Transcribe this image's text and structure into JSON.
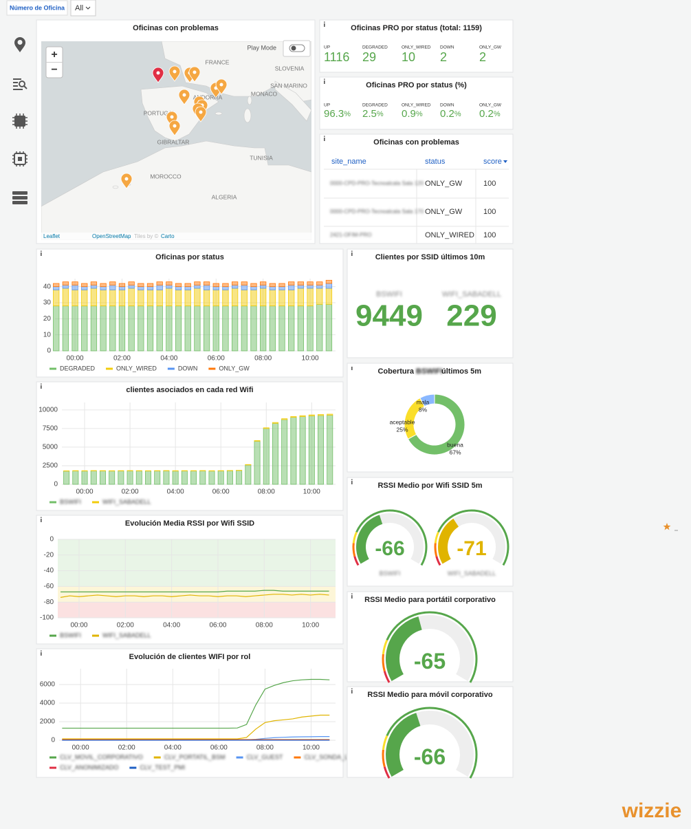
{
  "filter": {
    "label": "Número de Oficina",
    "value": "All"
  },
  "map": {
    "title": "Oficinas con problemas",
    "play_mode": "Play Mode",
    "zoom_in": "+",
    "zoom_out": "−",
    "places": [
      "FRANCE",
      "ANDORRA",
      "SLOVENIA",
      "SAN MARINO",
      "MONACO",
      "PORTUGAL",
      "GIBRALTAR",
      "TUNISIA",
      "MOROCCO",
      "ALGERIA"
    ],
    "attribution": [
      "Leaflet",
      "OpenStreetMap",
      "Tiles by ©",
      "Carto"
    ]
  },
  "status_count": {
    "title": "Oficinas PRO por status (total: 1159)",
    "items": [
      {
        "label": "UP",
        "value": 1116
      },
      {
        "label": "DEGRADED",
        "value": 29
      },
      {
        "label": "ONLY_WIRED",
        "value": 10
      },
      {
        "label": "DOWN",
        "value": 2
      },
      {
        "label": "ONLY_GW",
        "value": 2
      }
    ]
  },
  "status_pct": {
    "title": "Oficinas PRO por status (%)",
    "unit": "%",
    "items": [
      {
        "label": "UP",
        "value": 96.3
      },
      {
        "label": "DEGRADED",
        "value": 2.5
      },
      {
        "label": "ONLY_WIRED",
        "value": 0.9
      },
      {
        "label": "DOWN",
        "value": 0.2
      },
      {
        "label": "ONLY_GW",
        "value": 0.2
      }
    ]
  },
  "problem_table": {
    "title": "Oficinas con problemas",
    "columns": [
      "site_name",
      "status",
      "score"
    ],
    "rows": [
      [
        "0000-CPD-PRO-Tecnoalcala Sala 120",
        "ONLY_GW",
        100
      ],
      [
        "0000-CPD-PRO-Tecnoalcala Sala 170",
        "ONLY_GW",
        100
      ],
      [
        "2421-OFIM-PRO",
        "ONLY_WIRED",
        100
      ]
    ]
  },
  "ssid_clients": {
    "title": "Clientes por SSID últimos 10m",
    "items": [
      {
        "name": "BSWIFI",
        "value": 9449
      },
      {
        "name": "WIFI_SABADELL",
        "value": 229
      }
    ]
  },
  "logo": "wizzie",
  "chart_data": [
    {
      "type": "bar",
      "title": "Oficinas por status",
      "x": [
        -0.8,
        -0.4,
        0,
        0.4,
        0.8,
        1.2,
        1.6,
        2,
        2.4,
        2.8,
        3.2,
        3.6,
        4,
        4.4,
        4.8,
        5.2,
        5.6,
        6,
        6.4,
        6.8,
        7.2,
        7.6,
        8,
        8.4,
        8.8,
        9.2,
        9.6,
        10,
        10.4,
        10.8
      ],
      "xlim": [
        -0.85,
        11.08
      ],
      "xticks": [
        {
          "value": 0,
          "label": "00:00"
        },
        {
          "value": 2,
          "label": "02:00"
        },
        {
          "value": 4,
          "label": "04:00"
        },
        {
          "value": 6,
          "label": "06:00"
        },
        {
          "value": 8,
          "label": "08:00"
        },
        {
          "value": 10,
          "label": "10:00"
        }
      ],
      "ylim": [
        0,
        45
      ],
      "yticks": [
        0,
        10,
        20,
        30,
        40
      ],
      "grid": true,
      "series": [
        {
          "name": "DEGRADED",
          "color": "#73bf69",
          "values": [
            28,
            28,
            28,
            28,
            28,
            28,
            28,
            28,
            28,
            28,
            28,
            28,
            28,
            28,
            28,
            28,
            28,
            28,
            28,
            28,
            28,
            28,
            28,
            28,
            28,
            28,
            28,
            28,
            29,
            29
          ]
        },
        {
          "name": "ONLY_WIRED",
          "color": "#f2cc0c",
          "values": [
            10,
            11,
            10,
            10,
            11,
            10,
            10,
            10,
            11,
            10,
            10,
            10,
            11,
            10,
            10,
            11,
            10,
            10,
            10,
            11,
            10,
            10,
            11,
            10,
            10,
            10,
            11,
            11,
            10,
            10
          ]
        },
        {
          "name": "DOWN",
          "color": "#5794f2",
          "values": [
            2,
            2,
            3,
            2,
            2,
            2,
            3,
            2,
            2,
            2,
            2,
            3,
            2,
            2,
            2,
            2,
            3,
            2,
            2,
            2,
            3,
            2,
            2,
            2,
            2,
            3,
            2,
            2,
            2,
            3
          ]
        },
        {
          "name": "ONLY_GW",
          "color": "#ff780a",
          "values": [
            2,
            2,
            2,
            2,
            2,
            2,
            2,
            2,
            2,
            2,
            2,
            2,
            2,
            2,
            2,
            2,
            2,
            2,
            2,
            2,
            2,
            2,
            2,
            2,
            2,
            2,
            2,
            2,
            2,
            2
          ]
        }
      ]
    },
    {
      "type": "bar",
      "title": "clientes asociados en cada red Wifi",
      "x": [
        -0.8,
        -0.4,
        0,
        0.4,
        0.8,
        1.2,
        1.6,
        2,
        2.4,
        2.8,
        3.2,
        3.6,
        4,
        4.4,
        4.8,
        5.2,
        5.6,
        6,
        6.4,
        6.8,
        7.2,
        7.6,
        8,
        8.4,
        8.8,
        9.2,
        9.6,
        10,
        10.4,
        10.8
      ],
      "xlim": [
        -1,
        11.05
      ],
      "xticks": [
        {
          "value": 0,
          "label": "00:00"
        },
        {
          "value": 2,
          "label": "02:00"
        },
        {
          "value": 4,
          "label": "04:00"
        },
        {
          "value": 6,
          "label": "06:00"
        },
        {
          "value": 8,
          "label": "08:00"
        },
        {
          "value": 10,
          "label": "10:00"
        }
      ],
      "ylim": [
        0,
        11000
      ],
      "yticks": [
        0,
        2500,
        5000,
        7500,
        10000
      ],
      "grid": true,
      "series": [
        {
          "name": "BSWIFI",
          "color": "#73bf69",
          "values": [
            1780,
            1800,
            1790,
            1810,
            1800,
            1790,
            1800,
            1810,
            1800,
            1790,
            1800,
            1810,
            1790,
            1800,
            1800,
            1810,
            1790,
            1800,
            1820,
            1850,
            2600,
            5800,
            7500,
            8200,
            8700,
            9000,
            9100,
            9200,
            9250,
            9300
          ]
        },
        {
          "name": "WIFI_SABADELL",
          "color": "#f2cc0c",
          "values": [
            40,
            40,
            40,
            40,
            40,
            40,
            40,
            40,
            40,
            40,
            40,
            40,
            40,
            40,
            40,
            40,
            40,
            40,
            40,
            40,
            60,
            80,
            100,
            110,
            120,
            120,
            130,
            130,
            130,
            130
          ]
        }
      ]
    },
    {
      "type": "line",
      "title": "Evolución Media RSSI por Wifi SSID",
      "x": [
        -0.8,
        -0.4,
        0,
        0.4,
        0.8,
        1.2,
        1.6,
        2,
        2.4,
        2.8,
        3.2,
        3.6,
        4,
        4.4,
        4.8,
        5.2,
        5.6,
        6,
        6.4,
        6.8,
        7.2,
        7.6,
        8,
        8.4,
        8.8,
        9.2,
        9.6,
        10,
        10.4,
        10.8
      ],
      "xlim": [
        -0.92,
        11.08
      ],
      "xticks": [
        {
          "value": 0,
          "label": "00:00"
        },
        {
          "value": 2,
          "label": "02:00"
        },
        {
          "value": 4,
          "label": "04:00"
        },
        {
          "value": 6,
          "label": "06:00"
        },
        {
          "value": 8,
          "label": "08:00"
        },
        {
          "value": 10,
          "label": "10:00"
        }
      ],
      "ylim": [
        -100,
        0
      ],
      "yticks": [
        0,
        -20,
        -40,
        -60,
        -80,
        -100
      ],
      "grid": true,
      "thresholds": [
        {
          "from": -60,
          "to": 0,
          "color": "#e9f5e7"
        },
        {
          "from": -80,
          "to": -60,
          "color": "#fdf6d8"
        },
        {
          "from": -100,
          "to": -80,
          "color": "#fbe1e1"
        }
      ],
      "series": [
        {
          "name": "BSWIFI",
          "color": "#56a64b",
          "values": [
            -67,
            -67,
            -67,
            -67,
            -67,
            -67,
            -67,
            -67,
            -67,
            -67,
            -67,
            -67,
            -67,
            -67,
            -67,
            -67,
            -67,
            -67,
            -66,
            -66,
            -66,
            -66,
            -65,
            -65,
            -66,
            -66,
            -66,
            -66,
            -66,
            -66
          ]
        },
        {
          "name": "WIFI_SABADELL",
          "color": "#e0b400",
          "values": [
            -74,
            -72,
            -73,
            -72,
            -71,
            -72,
            -73,
            -72,
            -72,
            -73,
            -72,
            -72,
            -73,
            -72,
            -71,
            -72,
            -72,
            -73,
            -72,
            -72,
            -73,
            -72,
            -71,
            -70,
            -70,
            -71,
            -70,
            -71,
            -70,
            -71
          ]
        }
      ]
    },
    {
      "type": "line",
      "title": "Evolución de clientes WIFI por rol",
      "x": [
        -0.8,
        -0.4,
        0,
        0.4,
        0.8,
        1.2,
        1.6,
        2,
        2.4,
        2.8,
        3.2,
        3.6,
        4,
        4.4,
        4.8,
        5.2,
        5.6,
        6,
        6.4,
        6.8,
        7.2,
        7.6,
        8,
        8.4,
        8.8,
        9.2,
        9.6,
        10,
        10.4,
        10.8
      ],
      "xlim": [
        -0.93,
        11.06
      ],
      "xticks": [
        {
          "value": 0,
          "label": "00:00"
        },
        {
          "value": 2,
          "label": "02:00"
        },
        {
          "value": 4,
          "label": "04:00"
        },
        {
          "value": 6,
          "label": "06:00"
        },
        {
          "value": 8,
          "label": "08:00"
        },
        {
          "value": 10,
          "label": "10:00"
        }
      ],
      "ylim": [
        0,
        7700
      ],
      "yticks": [
        0,
        2000,
        4000,
        6000
      ],
      "grid": true,
      "series": [
        {
          "name": "CLV_MOVIL_CORPORATIVO",
          "color": "#56a64b",
          "values": [
            1300,
            1300,
            1300,
            1300,
            1300,
            1300,
            1300,
            1300,
            1300,
            1300,
            1300,
            1300,
            1300,
            1300,
            1300,
            1300,
            1300,
            1300,
            1300,
            1320,
            1700,
            3800,
            5500,
            5900,
            6200,
            6400,
            6500,
            6550,
            6550,
            6500
          ]
        },
        {
          "name": "CLV_PORTATIL_BSM",
          "color": "#e0b400",
          "values": [
            150,
            150,
            150,
            150,
            150,
            150,
            150,
            150,
            150,
            150,
            150,
            150,
            150,
            150,
            150,
            150,
            150,
            150,
            150,
            150,
            300,
            1200,
            1900,
            2100,
            2200,
            2300,
            2500,
            2600,
            2700,
            2700
          ]
        },
        {
          "name": "CLV_GUEST",
          "color": "#5794f2",
          "values": [
            20,
            20,
            20,
            20,
            20,
            20,
            20,
            20,
            20,
            20,
            20,
            20,
            20,
            20,
            20,
            20,
            20,
            20,
            20,
            20,
            40,
            100,
            200,
            280,
            320,
            350,
            370,
            380,
            400,
            400
          ]
        },
        {
          "name": "CLV_SONDA_LTE",
          "color": "#ff780a",
          "values": [
            80,
            80,
            80,
            80,
            80,
            80,
            80,
            80,
            80,
            80,
            80,
            80,
            80,
            80,
            80,
            80,
            80,
            80,
            80,
            80,
            80,
            80,
            80,
            80,
            80,
            80,
            80,
            80,
            80,
            80
          ]
        },
        {
          "name": "CLV_ANONIMIZADO",
          "color": "#e02f44",
          "values": [
            30,
            30,
            30,
            30,
            30,
            30,
            30,
            30,
            30,
            30,
            30,
            30,
            30,
            30,
            30,
            30,
            30,
            30,
            30,
            30,
            30,
            30,
            30,
            30,
            30,
            30,
            30,
            30,
            30,
            30
          ]
        },
        {
          "name": "CLV_TEST_PMI",
          "color": "#1f60c4",
          "values": [
            10,
            10,
            10,
            10,
            10,
            10,
            10,
            10,
            10,
            10,
            10,
            10,
            10,
            10,
            10,
            10,
            10,
            10,
            10,
            10,
            10,
            10,
            10,
            10,
            10,
            10,
            10,
            10,
            10,
            10
          ]
        }
      ]
    },
    {
      "type": "pie",
      "title": "Cobertura",
      "title_ssid": "BSWIFI",
      "title_suffix": "últimos 5m",
      "categories": [
        "buena",
        "aceptable",
        "mala"
      ],
      "values": [
        67,
        25,
        8
      ],
      "value_labels": [
        "67%",
        "25%",
        "8%"
      ],
      "colors": [
        "#73bf69",
        "#fade2a",
        "#8ab8ff"
      ]
    },
    {
      "type": "gauge",
      "title": "RSSI Medio por Wifi SSID 5m",
      "ylim": [
        -100,
        -20
      ],
      "thresholds": [
        {
          "value": -100,
          "color": "#e02f44"
        },
        {
          "value": -95,
          "color": "#ff780a"
        },
        {
          "value": -88,
          "color": "#fade2a"
        },
        {
          "value": -82,
          "color": "#56a64b"
        }
      ],
      "series": [
        {
          "name": "BSWIFI",
          "color": "#56a64b",
          "values": [
            -66
          ]
        },
        {
          "name": "WIFI_SABADELL",
          "color": "#e0b400",
          "values": [
            -71
          ]
        }
      ]
    },
    {
      "type": "gauge",
      "title": "RSSI Medio para portátil corporativo",
      "ylim": [
        -100,
        -20
      ],
      "thresholds": [
        {
          "value": -100,
          "color": "#e02f44"
        },
        {
          "value": -95,
          "color": "#ff780a"
        },
        {
          "value": -88,
          "color": "#fade2a"
        },
        {
          "value": -82,
          "color": "#56a64b"
        }
      ],
      "series": [
        {
          "color": "#56a64b",
          "values": [
            -65
          ]
        }
      ]
    },
    {
      "type": "gauge",
      "title": "RSSI Medio para móvil corporativo",
      "ylim": [
        -100,
        -20
      ],
      "thresholds": [
        {
          "value": -100,
          "color": "#e02f44"
        },
        {
          "value": -95,
          "color": "#ff780a"
        },
        {
          "value": -88,
          "color": "#fade2a"
        },
        {
          "value": -82,
          "color": "#56a64b"
        }
      ],
      "series": [
        {
          "color": "#56a64b",
          "values": [
            -66
          ]
        }
      ]
    }
  ]
}
